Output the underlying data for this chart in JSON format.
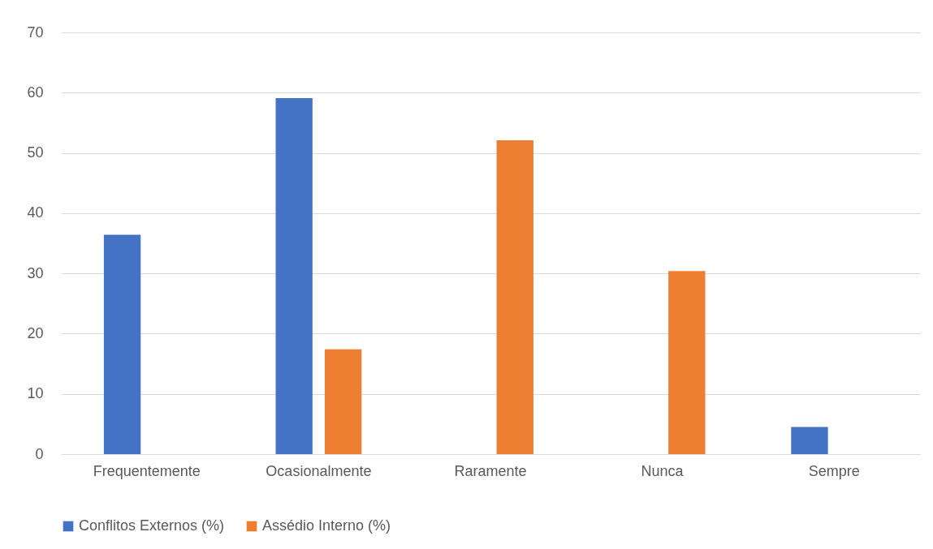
{
  "chart_data": {
    "type": "bar",
    "categories": [
      "Frequentemente",
      "Ocasionalmente",
      "Raramente",
      "Nunca",
      "Sempre"
    ],
    "series": [
      {
        "name": "Conflitos Externos (%)",
        "color": "#4472c4",
        "values": [
          36.4,
          59.1,
          null,
          null,
          4.5
        ]
      },
      {
        "name": "Assédio Interno (%)",
        "color": "#ed7d31",
        "values": [
          null,
          17.4,
          52.1,
          30.4,
          null
        ]
      }
    ],
    "ylim": [
      0,
      70
    ],
    "yticks": [
      0,
      10,
      20,
      30,
      40,
      50,
      60,
      70
    ],
    "grid": "y",
    "legend": "bottom"
  }
}
